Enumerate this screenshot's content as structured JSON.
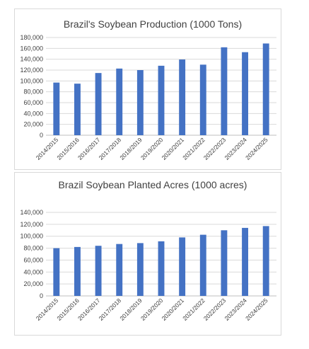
{
  "chart_data": [
    {
      "type": "bar",
      "title": "Brazil's Soybean Production (1000 Tons)",
      "categories": [
        "2014/2015",
        "2015/2016",
        "2016/2017",
        "2017/2018",
        "2018/2019",
        "2019/2020",
        "2020/2021",
        "2021/2022",
        "2022/2023",
        "2023/2024",
        "2024/2025"
      ],
      "values": [
        97000,
        95000,
        114600,
        122800,
        120000,
        128000,
        139500,
        130000,
        162000,
        153000,
        169000
      ],
      "ylim": [
        0,
        180000
      ],
      "yticks": [
        "0",
        "20,000",
        "40,000",
        "60,000",
        "80,000",
        "100,000",
        "120,000",
        "140,000",
        "160,000",
        "180,000"
      ],
      "grid": true,
      "color": "#4472c4"
    },
    {
      "type": "bar",
      "title": "Brazil Soybean Planted Acres (1000 acres)",
      "categories": [
        "2014/2015",
        "2015/2016",
        "2016/2017",
        "2017/2018",
        "2018/2019",
        "2019/2020",
        "2020/2021",
        "2021/2022",
        "2022/2023",
        "2023/2024",
        "2024/2025"
      ],
      "values": [
        80000,
        82000,
        84000,
        87000,
        88500,
        91500,
        98000,
        102500,
        110000,
        114000,
        117000
      ],
      "ylim": [
        0,
        140000
      ],
      "yticks": [
        "0",
        "20,000",
        "40,000",
        "60,000",
        "80,000",
        "100,000",
        "120,000",
        "140,000"
      ],
      "grid": true,
      "color": "#4472c4"
    }
  ]
}
